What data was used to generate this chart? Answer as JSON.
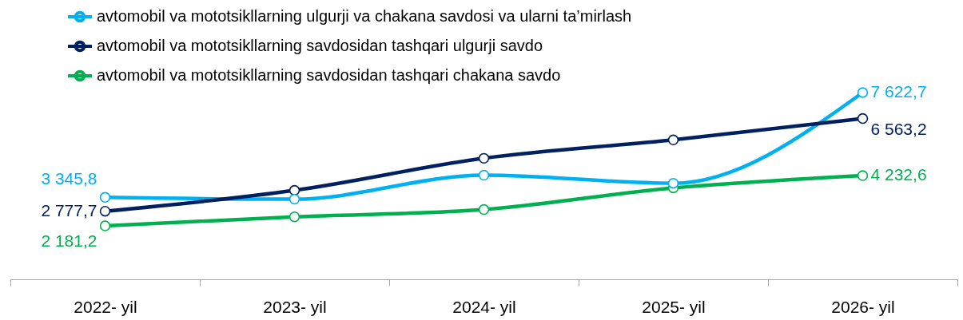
{
  "chart_data": {
    "type": "line",
    "categories": [
      "2022- yil",
      "2023- yil",
      "2024- yil",
      "2025- yil",
      "2026- yil"
    ],
    "series": [
      {
        "name": "avtomobil va mototsikllarning ulgurji va chakana savdosi va ularni ta’mirlash",
        "color": "#00b0f0",
        "values": [
          3345.8,
          3270,
          4250,
          3920,
          7622.7
        ],
        "value_labels": [
          "3 345,8",
          null,
          null,
          null,
          "7 622,7"
        ]
      },
      {
        "name": "avtomobil va mototsikllarning savdosidan tashqari ulgurji savdo",
        "color": "#002060",
        "values": [
          2777.7,
          3630,
          4940,
          5690,
          6563.2
        ],
        "value_labels": [
          "2 777,7",
          null,
          null,
          null,
          "6 563,2"
        ]
      },
      {
        "name": "avtomobil va mototsikllarning savdosidan tashqari chakana savdo",
        "color": "#00b050",
        "values": [
          2181.2,
          2550,
          2850,
          3730,
          4232.6
        ],
        "value_labels": [
          "2 181,2",
          null,
          null,
          null,
          "4 232,6"
        ]
      }
    ],
    "tick_labels": "x",
    "grid": false,
    "legend": "top",
    "marker": "circle",
    "line_style": "solid"
  }
}
